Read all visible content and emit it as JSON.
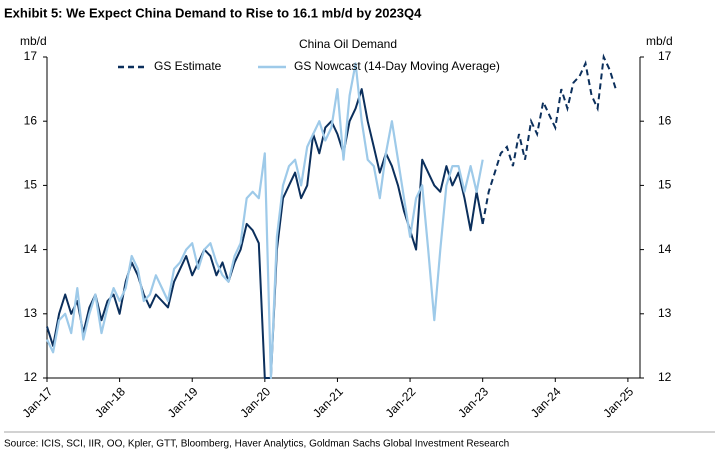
{
  "chart_data": {
    "type": "line",
    "title": "Exhibit 5: We Expect China Demand to Rise to 16.1 mb/d by 2023Q4",
    "subtitle": "China Oil Demand",
    "y_label": "mb/d",
    "y2_label": "mb/d",
    "source": "Source: ICIS, SCI, IIR, OO, Kpler, GTT, Bloomberg, Haver Analytics, Goldman Sachs Global Investment Research",
    "xlim": [
      "2017-01",
      "2025-03"
    ],
    "xticks": [
      {
        "value": "2017-01",
        "label": "Jan-17"
      },
      {
        "value": "2018-01",
        "label": "Jan-18"
      },
      {
        "value": "2019-01",
        "label": "Jan-19"
      },
      {
        "value": "2020-01",
        "label": "Jan-20"
      },
      {
        "value": "2021-01",
        "label": "Jan-21"
      },
      {
        "value": "2022-01",
        "label": "Jan-22"
      },
      {
        "value": "2023-01",
        "label": "Jan-23"
      },
      {
        "value": "2024-01",
        "label": "Jan-24"
      },
      {
        "value": "2025-01",
        "label": "Jan-25"
      }
    ],
    "ylim": [
      12,
      17
    ],
    "yticks": [
      12,
      13,
      14,
      15,
      16,
      17
    ],
    "y2lim": [
      12,
      17
    ],
    "y2ticks": [
      12,
      13,
      14,
      15,
      16,
      17
    ],
    "grid": false,
    "x": [
      "2017-01",
      "2017-02",
      "2017-03",
      "2017-04",
      "2017-05",
      "2017-06",
      "2017-07",
      "2017-08",
      "2017-09",
      "2017-10",
      "2017-11",
      "2017-12",
      "2018-01",
      "2018-02",
      "2018-03",
      "2018-04",
      "2018-05",
      "2018-06",
      "2018-07",
      "2018-08",
      "2018-09",
      "2018-10",
      "2018-11",
      "2018-12",
      "2019-01",
      "2019-02",
      "2019-03",
      "2019-04",
      "2019-05",
      "2019-06",
      "2019-07",
      "2019-08",
      "2019-09",
      "2019-10",
      "2019-11",
      "2019-12",
      "2020-01",
      "2020-02",
      "2020-03",
      "2020-04",
      "2020-05",
      "2020-06",
      "2020-07",
      "2020-08",
      "2020-09",
      "2020-10",
      "2020-11",
      "2020-12",
      "2021-01",
      "2021-02",
      "2021-03",
      "2021-04",
      "2021-05",
      "2021-06",
      "2021-07",
      "2021-08",
      "2021-09",
      "2021-10",
      "2021-11",
      "2021-12",
      "2022-01",
      "2022-02",
      "2022-03",
      "2022-04",
      "2022-05",
      "2022-06",
      "2022-07",
      "2022-08",
      "2022-09",
      "2022-10",
      "2022-11",
      "2022-12",
      "2023-01",
      "2023-02",
      "2023-03",
      "2023-04",
      "2023-05",
      "2023-06",
      "2023-07",
      "2023-08",
      "2023-09",
      "2023-10",
      "2023-11",
      "2023-12",
      "2024-01",
      "2024-02",
      "2024-03",
      "2024-04",
      "2024-05",
      "2024-06",
      "2024-07",
      "2024-08",
      "2024-09",
      "2024-10",
      "2024-11"
    ],
    "series": [
      {
        "name": "GS Estimate",
        "color": "#0b2f5c",
        "dashed_from": "2023-01",
        "values": [
          12.8,
          12.5,
          13.0,
          13.3,
          13.0,
          13.2,
          12.7,
          13.1,
          13.3,
          12.9,
          13.2,
          13.3,
          13.0,
          13.5,
          13.8,
          13.6,
          13.3,
          13.1,
          13.3,
          13.2,
          13.1,
          13.5,
          13.7,
          13.9,
          13.6,
          13.8,
          14.0,
          13.9,
          13.6,
          13.8,
          13.5,
          13.8,
          14.0,
          14.4,
          14.3,
          14.1,
          12.0,
          12.0,
          14.0,
          14.8,
          15.0,
          15.2,
          14.8,
          15.0,
          15.8,
          15.5,
          15.9,
          16.0,
          15.8,
          15.5,
          16.0,
          16.2,
          16.5,
          16.0,
          15.6,
          15.2,
          15.5,
          15.3,
          15.0,
          14.6,
          14.3,
          14.0,
          15.4,
          15.2,
          15.0,
          14.9,
          15.3,
          15.0,
          15.2,
          14.8,
          14.3,
          14.9,
          14.4,
          14.9,
          15.2,
          15.5,
          15.6,
          15.3,
          15.8,
          15.4,
          16.0,
          15.8,
          16.3,
          16.1,
          15.9,
          16.5,
          16.2,
          16.6,
          16.7,
          16.9,
          16.4,
          16.2,
          17.0,
          16.8,
          16.5
        ]
      },
      {
        "name": "GS Nowcast (14-Day Moving Average)",
        "color": "#9ecae9",
        "values": [
          12.6,
          12.4,
          12.9,
          13.0,
          12.7,
          13.4,
          12.6,
          13.0,
          13.3,
          12.7,
          13.1,
          13.4,
          13.2,
          13.4,
          13.9,
          13.7,
          13.2,
          13.3,
          13.6,
          13.4,
          13.2,
          13.7,
          13.8,
          14.0,
          14.1,
          13.7,
          14.0,
          14.1,
          13.8,
          13.6,
          13.5,
          13.9,
          14.1,
          14.8,
          14.9,
          14.8,
          15.5,
          12.0,
          14.2,
          15.0,
          15.3,
          15.4,
          15.0,
          15.6,
          15.8,
          16.0,
          15.7,
          15.9,
          16.5,
          15.4,
          16.4,
          16.9,
          16.0,
          15.4,
          15.3,
          14.8,
          15.5,
          16.0,
          15.4,
          14.8,
          14.2,
          14.8,
          15.0,
          14.0,
          12.9,
          14.0,
          15.0,
          15.3,
          15.3,
          14.9,
          15.3,
          14.9,
          15.4,
          null,
          null,
          null,
          null,
          null,
          null,
          null,
          null,
          null,
          null,
          null,
          null,
          null,
          null,
          null,
          null,
          null,
          null,
          null,
          null,
          null,
          null
        ]
      }
    ]
  }
}
